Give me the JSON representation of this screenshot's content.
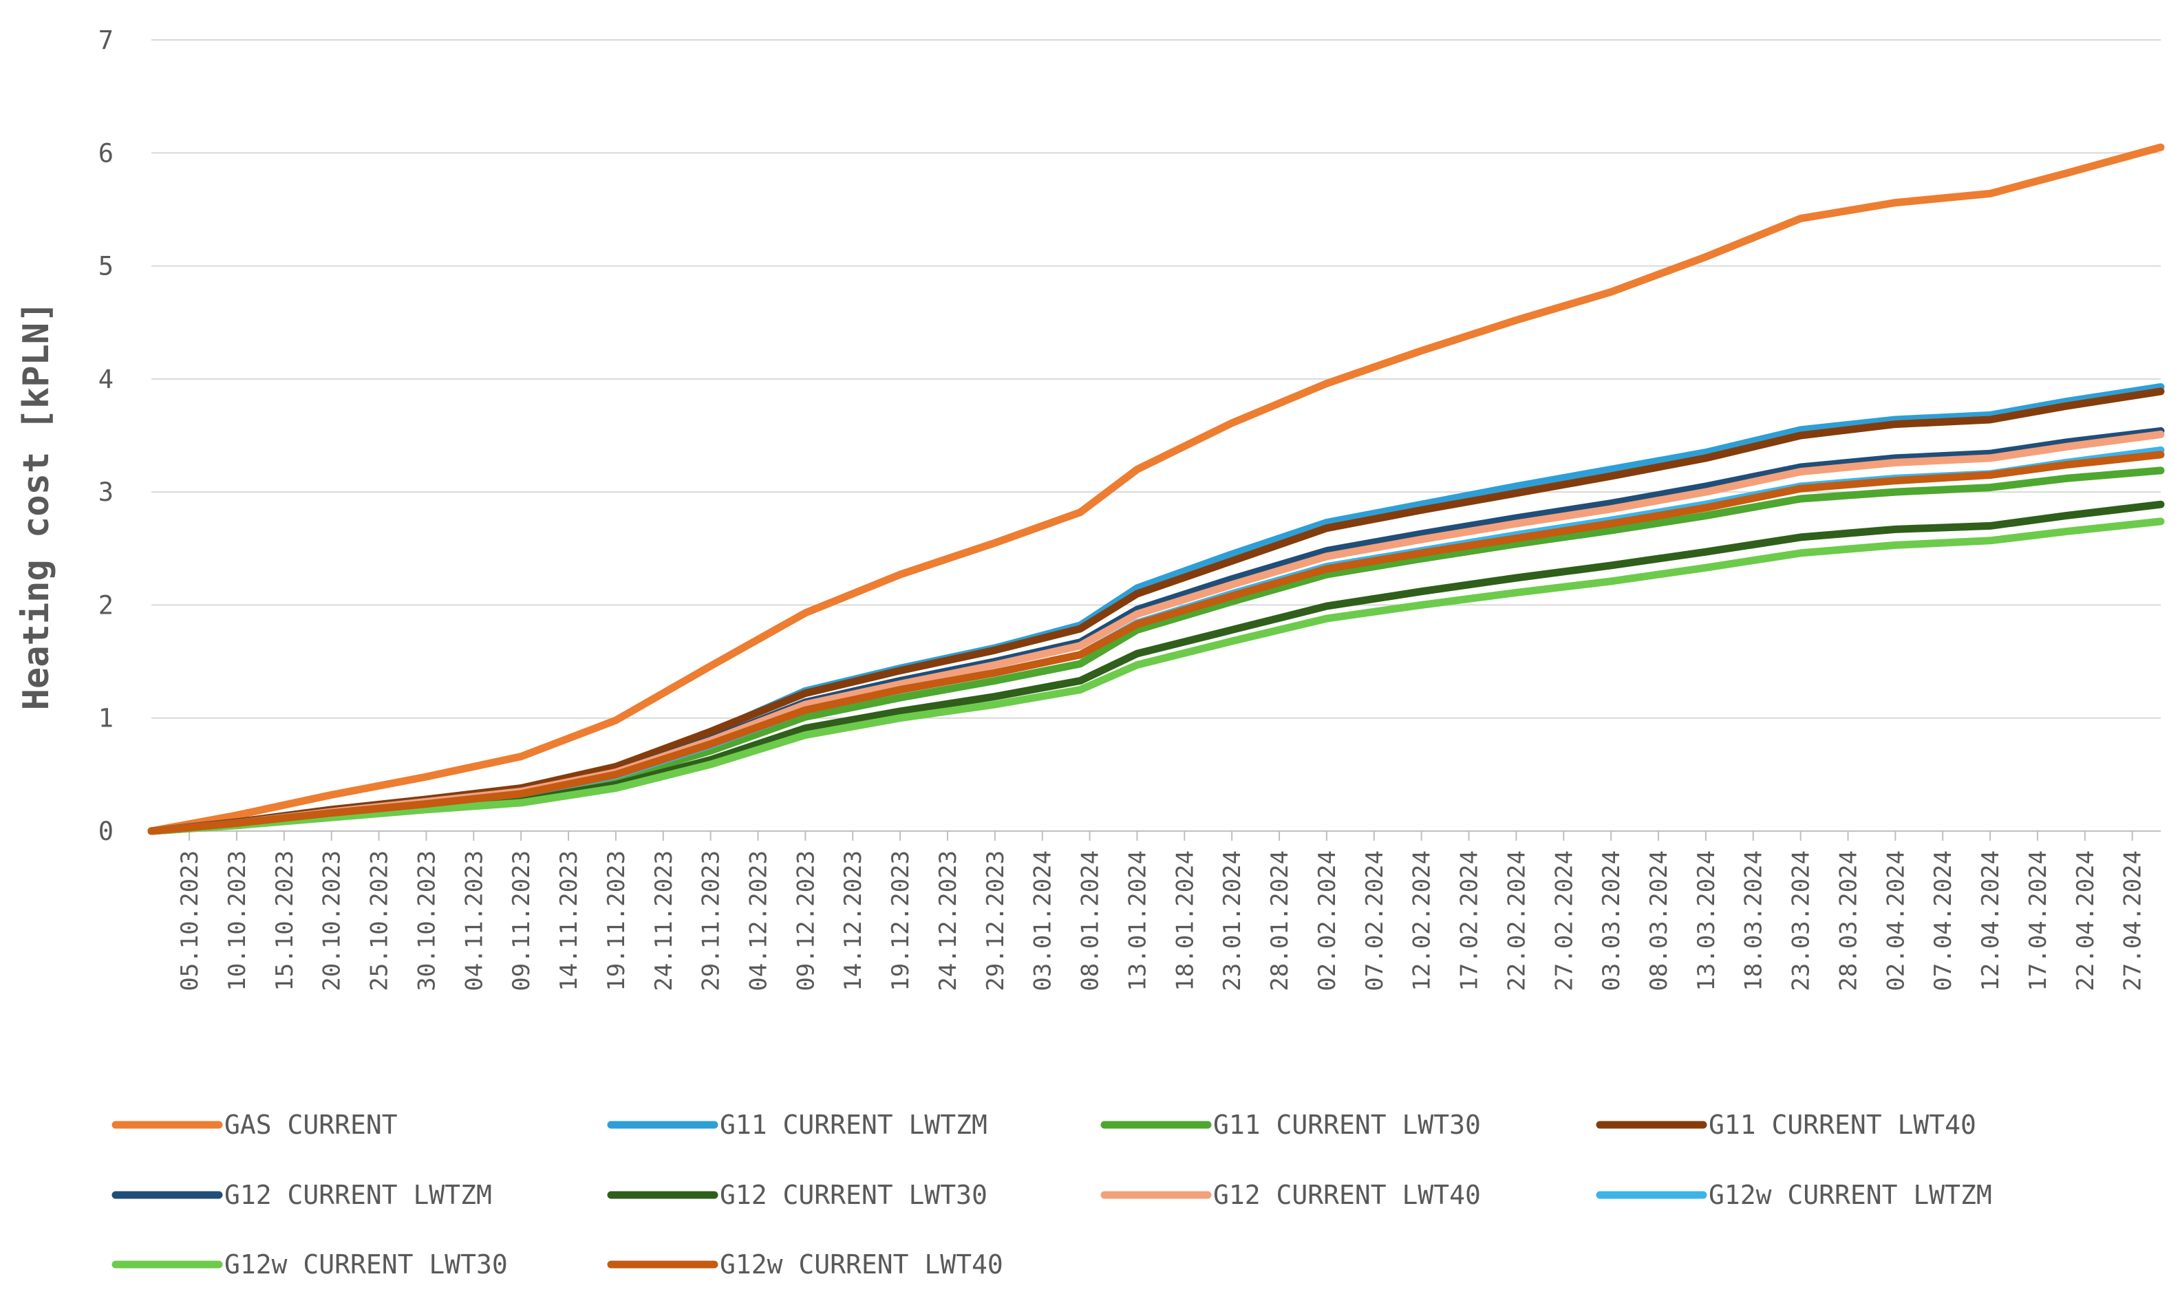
{
  "chart_data": {
    "type": "line",
    "title": "",
    "xlabel": "",
    "ylabel": "Heating cost [kPLN]",
    "ylim": [
      0,
      7
    ],
    "yticks": [
      0,
      1,
      2,
      3,
      4,
      5,
      6,
      7
    ],
    "grid": true,
    "legend_position": "bottom",
    "x_start": "01.10.2023",
    "x_end": "30.04.2024",
    "x_tick_labels": [
      "05.10.2023",
      "10.10.2023",
      "15.10.2023",
      "20.10.2023",
      "25.10.2023",
      "30.10.2023",
      "04.11.2023",
      "09.11.2023",
      "14.11.2023",
      "19.11.2023",
      "24.11.2023",
      "29.11.2023",
      "04.12.2023",
      "09.12.2023",
      "14.12.2023",
      "19.12.2023",
      "24.12.2023",
      "29.12.2023",
      "03.01.2024",
      "08.01.2024",
      "13.01.2024",
      "18.01.2024",
      "23.01.2024",
      "28.01.2024",
      "02.02.2024",
      "07.02.2024",
      "12.02.2024",
      "17.02.2024",
      "22.02.2024",
      "27.02.2024",
      "03.03.2024",
      "08.03.2024",
      "13.03.2024",
      "18.03.2024",
      "23.03.2024",
      "28.03.2024",
      "02.04.2024",
      "07.04.2024",
      "12.04.2024",
      "17.04.2024",
      "22.04.2024",
      "27.04.2024"
    ],
    "x": [
      "01.10.2023",
      "10.10.2023",
      "20.10.2023",
      "30.10.2023",
      "09.11.2023",
      "19.11.2023",
      "29.11.2023",
      "09.12.2023",
      "19.12.2023",
      "29.12.2023",
      "07.01.2024",
      "13.01.2024",
      "23.01.2024",
      "02.02.2024",
      "12.02.2024",
      "22.02.2024",
      "03.03.2024",
      "13.03.2024",
      "23.03.2024",
      "02.04.2024",
      "12.04.2024",
      "20.04.2024",
      "30.04.2024"
    ],
    "series": [
      {
        "name": "GAS CURRENT",
        "color": "#ED7D31",
        "values": [
          0,
          0.14,
          0.32,
          0.48,
          0.66,
          0.98,
          1.46,
          1.93,
          2.27,
          2.55,
          2.82,
          3.2,
          3.61,
          3.96,
          4.25,
          4.52,
          4.77,
          5.08,
          5.42,
          5.56,
          5.64,
          5.82,
          6.05
        ]
      },
      {
        "name": "G11 CURRENT LWTZM",
        "color": "#2E9FD6",
        "values": [
          0,
          0.08,
          0.19,
          0.28,
          0.38,
          0.56,
          0.87,
          1.24,
          1.44,
          1.62,
          1.82,
          2.15,
          2.45,
          2.73,
          2.89,
          3.05,
          3.2,
          3.35,
          3.55,
          3.64,
          3.68,
          3.8,
          3.93
        ]
      },
      {
        "name": "G11 CURRENT LWT30",
        "color": "#4EA72E",
        "values": [
          0,
          0.06,
          0.15,
          0.23,
          0.31,
          0.46,
          0.71,
          1.01,
          1.18,
          1.33,
          1.48,
          1.78,
          2.03,
          2.27,
          2.41,
          2.54,
          2.66,
          2.79,
          2.94,
          3.0,
          3.04,
          3.12,
          3.19
        ]
      },
      {
        "name": "G11 CURRENT LWT40",
        "color": "#843C0C",
        "values": [
          0,
          0.08,
          0.19,
          0.28,
          0.38,
          0.57,
          0.88,
          1.22,
          1.42,
          1.6,
          1.79,
          2.1,
          2.39,
          2.68,
          2.84,
          2.99,
          3.14,
          3.3,
          3.5,
          3.6,
          3.64,
          3.76,
          3.89
        ]
      },
      {
        "name": "G12 CURRENT LWTZM",
        "color": "#1F4E79",
        "values": [
          0,
          0.07,
          0.17,
          0.26,
          0.35,
          0.52,
          0.81,
          1.14,
          1.33,
          1.5,
          1.67,
          1.96,
          2.23,
          2.48,
          2.63,
          2.77,
          2.9,
          3.05,
          3.22,
          3.3,
          3.34,
          3.44,
          3.54
        ]
      },
      {
        "name": "G12 CURRENT LWT30",
        "color": "#2F5F1A",
        "values": [
          0,
          0.05,
          0.13,
          0.2,
          0.27,
          0.41,
          0.63,
          0.91,
          1.06,
          1.19,
          1.33,
          1.57,
          1.78,
          1.99,
          2.12,
          2.24,
          2.35,
          2.47,
          2.6,
          2.67,
          2.7,
          2.79,
          2.89
        ]
      },
      {
        "name": "G12 CURRENT LWT40",
        "color": "#F4A07A",
        "values": [
          0,
          0.07,
          0.17,
          0.26,
          0.35,
          0.52,
          0.8,
          1.12,
          1.3,
          1.47,
          1.64,
          1.92,
          2.18,
          2.43,
          2.58,
          2.72,
          2.85,
          3.0,
          3.18,
          3.26,
          3.3,
          3.4,
          3.51
        ]
      },
      {
        "name": "G12w CURRENT LWTZM",
        "color": "#3BB4EA",
        "values": [
          0,
          0.07,
          0.16,
          0.24,
          0.33,
          0.49,
          0.76,
          1.07,
          1.25,
          1.4,
          1.56,
          1.84,
          2.1,
          2.34,
          2.48,
          2.62,
          2.75,
          2.89,
          3.05,
          3.12,
          3.16,
          3.26,
          3.37
        ]
      },
      {
        "name": "G12w CURRENT LWT30",
        "color": "#6CCB4A",
        "values": [
          0,
          0.05,
          0.12,
          0.19,
          0.25,
          0.38,
          0.59,
          0.85,
          1.0,
          1.12,
          1.25,
          1.47,
          1.68,
          1.88,
          2.0,
          2.11,
          2.21,
          2.33,
          2.46,
          2.53,
          2.57,
          2.65,
          2.74
        ]
      },
      {
        "name": "G12w CURRENT LWT40",
        "color": "#C55A11",
        "values": [
          0,
          0.07,
          0.16,
          0.24,
          0.33,
          0.5,
          0.77,
          1.07,
          1.25,
          1.4,
          1.56,
          1.83,
          2.08,
          2.32,
          2.46,
          2.59,
          2.72,
          2.86,
          3.03,
          3.1,
          3.15,
          3.24,
          3.33
        ]
      }
    ]
  }
}
